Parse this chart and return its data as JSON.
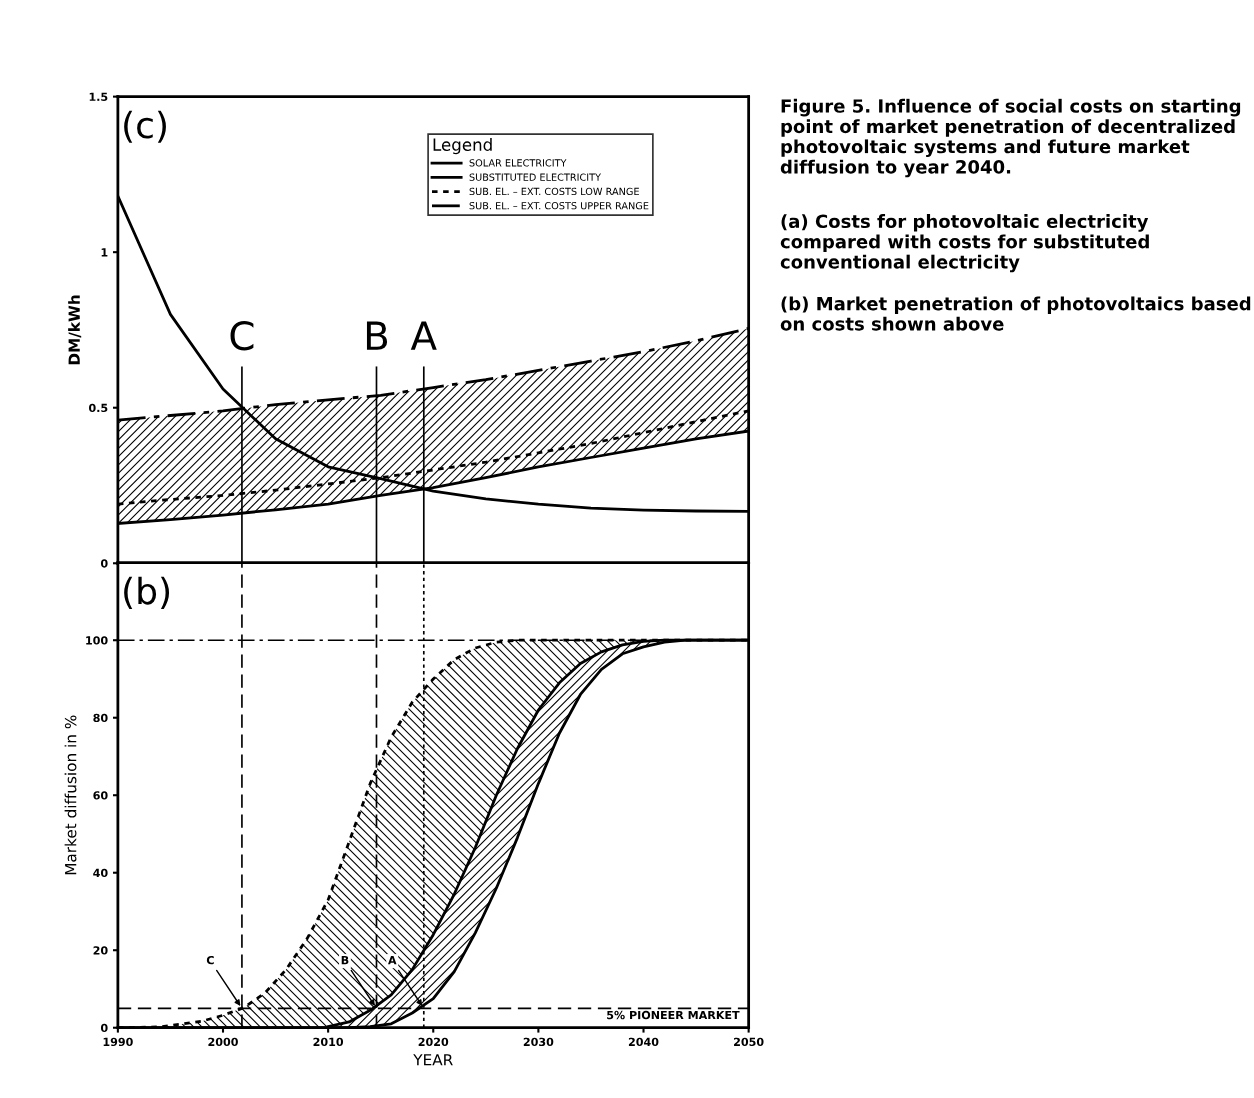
{
  "chart_data": [
    {
      "type": "line",
      "ylabel": "DM/kWh",
      "legend_title": "Legend",
      "legend": "top",
      "grid": false,
      "tick_labels": "y",
      "x": [
        1990,
        1995,
        2000,
        2005,
        2010,
        2015,
        2020,
        2025,
        2030,
        2035,
        2040,
        2045,
        2050
      ],
      "xlim": [
        1990,
        2050
      ],
      "ylim": [
        0,
        1.5
      ],
      "yticks": [
        0,
        0.5,
        1,
        1.5
      ],
      "series": [
        {
          "name": "SOLAR ELECTRICITY",
          "color": "#000000",
          "line_style": "solid",
          "values": [
            1.18,
            0.8,
            0.56,
            0.4,
            0.31,
            0.272,
            0.232,
            0.207,
            0.19,
            0.177,
            0.171,
            0.168,
            0.167
          ]
        },
        {
          "name": "SUBSTITUTED ELECTRICITY",
          "color": "#000000",
          "line_style": "solid",
          "values": [
            0.128,
            0.14,
            0.155,
            0.172,
            0.19,
            0.218,
            0.243,
            0.275,
            0.31,
            0.34,
            0.37,
            0.4,
            0.425
          ]
        },
        {
          "name": "SUB. EL. – EXT. COSTS LOW RANGE",
          "color": "#000000",
          "line_style": "dotted",
          "values": [
            0.19,
            0.205,
            0.218,
            0.235,
            0.255,
            0.275,
            0.3,
            0.325,
            0.355,
            0.385,
            0.42,
            0.455,
            0.49
          ]
        },
        {
          "name": "SUB. EL. – EXT. COSTS UPPER RANGE",
          "color": "#000000",
          "line_style": "dashdot",
          "values": [
            0.46,
            0.475,
            0.49,
            0.51,
            0.525,
            0.54,
            0.565,
            0.59,
            0.62,
            0.65,
            0.68,
            0.715,
            0.755
          ],
          "lower": [
            0.128,
            0.14,
            0.155,
            0.172,
            0.19,
            0.218,
            0.243,
            0.275,
            0.31,
            0.34,
            0.37,
            0.4,
            0.425
          ],
          "upper": [
            0.46,
            0.475,
            0.49,
            0.51,
            0.525,
            0.54,
            0.565,
            0.59,
            0.62,
            0.65,
            0.68,
            0.715,
            0.755
          ]
        }
      ],
      "ref_lines": [
        {
          "axis": "x",
          "value": 2001.8,
          "label": "C"
        },
        {
          "axis": "x",
          "value": 2014.6,
          "label": "B"
        },
        {
          "axis": "x",
          "value": 2019.1,
          "label": "A"
        }
      ],
      "annotations": [
        "(c)",
        "Figure 5. Influence of social costs on starting point of market penetration of decentralized photovoltaic systems and future market diffusion to year 2040.",
        "(a) Costs for photovoltaic electricity compared with costs for substituted conventional electricity",
        "(b) Market penetration of photovoltaics based on costs shown above"
      ]
    },
    {
      "type": "line",
      "xlabel": "YEAR",
      "ylabel": "Market diffusion in %",
      "legend": false,
      "grid": false,
      "x": [
        1990,
        1994,
        1998,
        2000,
        2002,
        2004,
        2006,
        2008,
        2010,
        2012,
        2014,
        2016,
        2018,
        2020,
        2022,
        2024,
        2026,
        2028,
        2030,
        2032,
        2034,
        2036,
        2038,
        2040,
        2042,
        2044,
        2046,
        2050
      ],
      "xlim": [
        1990,
        2050
      ],
      "xticks": [
        1990,
        2000,
        2010,
        2020,
        2030,
        2040,
        2050
      ],
      "ylim": [
        0,
        120
      ],
      "yticks": [
        0,
        20,
        40,
        60,
        80,
        100
      ],
      "series": [
        {
          "color": "#000000",
          "line_style": "dotted",
          "values": [
            0,
            0.2,
            1.7,
            3.2,
            5.2,
            9,
            15,
            23,
            33,
            48,
            63,
            75,
            84,
            90,
            95,
            98,
            99.5,
            100,
            100,
            100,
            100,
            100,
            100,
            100,
            100,
            100,
            100,
            100
          ],
          "lower": [
            0,
            0,
            0,
            0,
            0,
            0,
            0,
            0,
            0.3,
            1.5,
            4.5,
            8.5,
            15,
            24,
            34.5,
            46.5,
            60,
            72,
            82,
            89,
            94,
            97,
            98.8,
            99.7,
            100,
            100,
            100,
            100
          ],
          "upper": [
            0,
            0.2,
            1.7,
            3.2,
            5.2,
            9,
            15,
            23,
            33,
            48,
            63,
            75,
            84,
            90,
            95,
            98,
            99.5,
            100,
            100,
            100,
            100,
            100,
            100,
            100,
            100,
            100,
            100,
            100
          ]
        },
        {
          "color": "#000000",
          "line_style": "solid",
          "x": [
            2010,
            2012,
            2014,
            2016,
            2018,
            2020,
            2022,
            2024,
            2026,
            2028,
            2030,
            2032,
            2034,
            2036,
            2038,
            2040,
            2042,
            2044,
            2046,
            2050
          ],
          "values": [
            0.3,
            1.5,
            4.5,
            8.5,
            15,
            24,
            34.5,
            46.5,
            60,
            72,
            82,
            89,
            94,
            97,
            98.8,
            99.7,
            100,
            100,
            100,
            100
          ],
          "lower": [
            0,
            0,
            0.3,
            1,
            3.8,
            7.5,
            14.5,
            24.5,
            36,
            49,
            63,
            76,
            86,
            92.5,
            96.5,
            98.3,
            99.5,
            100,
            100,
            100
          ],
          "upper": [
            0.3,
            1.5,
            4.5,
            8.5,
            15,
            24,
            34.5,
            46.5,
            60,
            72,
            82,
            89,
            94,
            97,
            98.8,
            99.7,
            100,
            100,
            100,
            100
          ]
        },
        {
          "color": "#000000",
          "line_style": "solid",
          "values": [
            0,
            0,
            0,
            0,
            0,
            0,
            0,
            0,
            0,
            0,
            0.3,
            1,
            3.8,
            7.5,
            14.5,
            24.5,
            36,
            49,
            63,
            76,
            86,
            92.5,
            96.5,
            98.3,
            99.5,
            100,
            100,
            100
          ]
        }
      ],
      "ref_lines": [
        {
          "axis": "x",
          "value": 2001.8,
          "line_style": "dashed"
        },
        {
          "axis": "x",
          "value": 2014.6,
          "line_style": "dashed"
        },
        {
          "axis": "x",
          "value": 2019.1,
          "line_style": "dotted"
        },
        {
          "axis": "y",
          "value": 100,
          "line_style": "dashdot"
        },
        {
          "axis": "y",
          "value": 5,
          "line_style": "dashed",
          "label": "5% PIONEER MARKET"
        }
      ],
      "annotations": [
        "(b)",
        {
          "text": "C",
          "x": 2001.8,
          "y": 5
        },
        {
          "text": "B",
          "x": 2014.6,
          "y": 5
        },
        {
          "text": "A",
          "x": 2019.1,
          "y": 5
        }
      ]
    }
  ]
}
